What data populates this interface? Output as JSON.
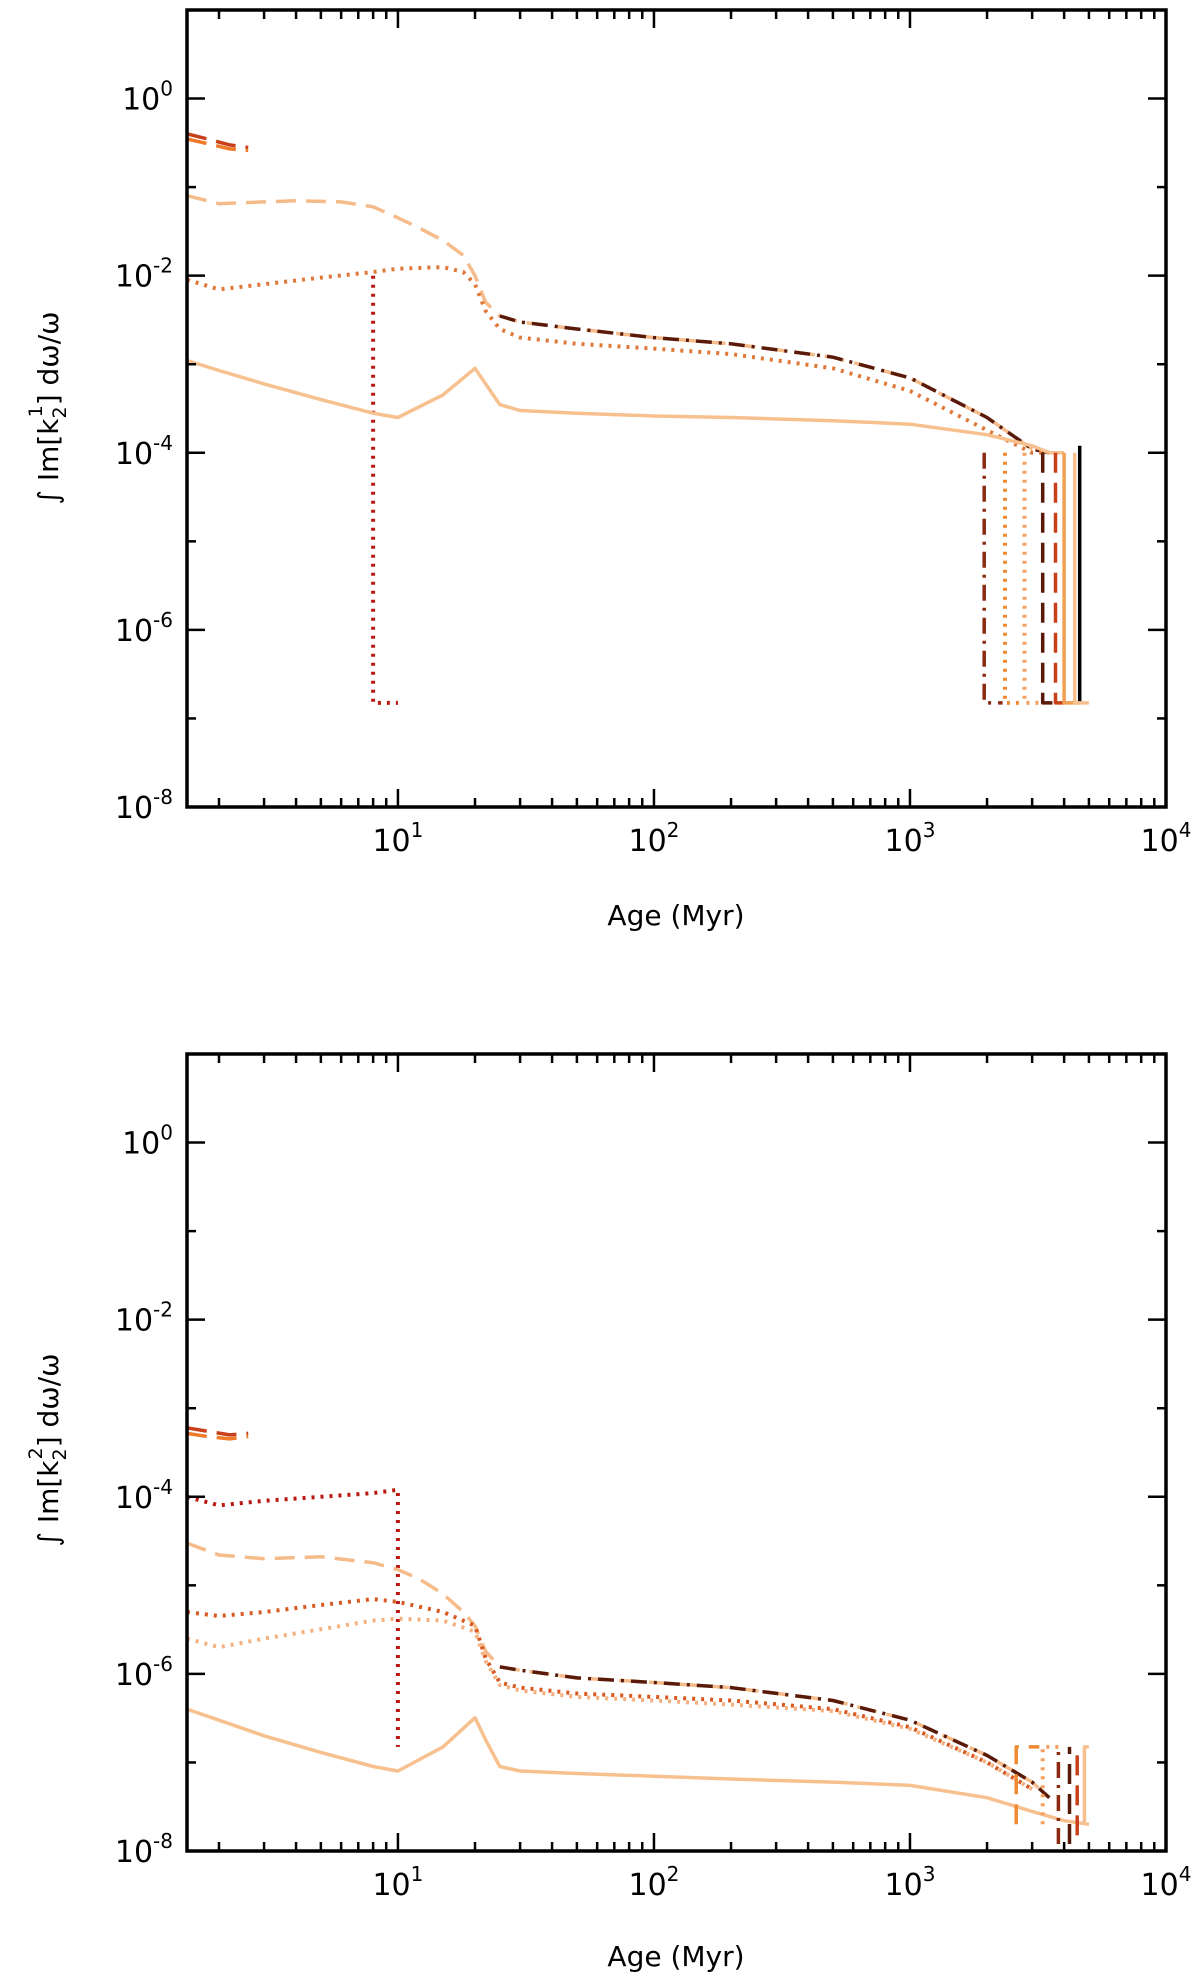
{
  "figure": {
    "panels": [
      {
        "id": "top",
        "xlabel": "Age (Myr)",
        "ylabel_prefix": "∫ Im[k",
        "ylabel_sub": "2",
        "ylabel_sup": "1",
        "ylabel_suffix": "] dω/ω"
      },
      {
        "id": "bottom",
        "xlabel": "Age (Myr)",
        "ylabel_prefix": "∫ Im[k",
        "ylabel_sub": "2",
        "ylabel_sup": "2",
        "ylabel_suffix": "] dω/ω"
      }
    ]
  },
  "chart_data": [
    {
      "type": "line",
      "title": "",
      "xlabel": "Age (Myr)",
      "ylabel": "∫ Im[k_2^1] dω/ω",
      "xscale": "log",
      "yscale": "log",
      "xlim": [
        1.5,
        10000
      ],
      "ylim": [
        1e-08,
        10
      ],
      "xticks": [
        {
          "base": "10",
          "exp": "1",
          "value": 10
        },
        {
          "base": "10",
          "exp": "2",
          "value": 100
        },
        {
          "base": "10",
          "exp": "3",
          "value": 1000
        },
        {
          "base": "10",
          "exp": "4",
          "value": 10000
        }
      ],
      "yticks": [
        {
          "base": "10",
          "exp": "-8",
          "value": 1e-08
        },
        {
          "base": "10",
          "exp": "-6",
          "value": 1e-06
        },
        {
          "base": "10",
          "exp": "-4",
          "value": 0.0001
        },
        {
          "base": "10",
          "exp": "-2",
          "value": 0.01
        },
        {
          "base": "10",
          "exp": "0",
          "value": 1
        }
      ],
      "series": [
        {
          "name": "pms-early-dashed-red",
          "color": "#c8401a",
          "style": "dashed",
          "x": [
            1.5,
            1.8,
            2.2,
            2.6
          ],
          "y": [
            0.4,
            0.35,
            0.3,
            0.28
          ]
        },
        {
          "name": "pms-early-dashed-orange",
          "color": "#f07a2a",
          "style": "dashed",
          "x": [
            1.5,
            1.8,
            2.2,
            2.6
          ],
          "y": [
            0.35,
            0.31,
            0.27,
            0.26
          ]
        },
        {
          "name": "dashed-upper",
          "color": "#f6bb8a",
          "style": "dashed",
          "x": [
            1.5,
            2,
            3,
            4,
            6,
            8,
            10,
            12,
            15,
            18,
            20,
            22,
            25,
            30,
            50,
            100,
            200,
            500,
            1000,
            2000,
            3000,
            3500
          ],
          "y": [
            0.08,
            0.065,
            0.068,
            0.07,
            0.068,
            0.06,
            0.045,
            0.035,
            0.025,
            0.017,
            0.01,
            0.005,
            0.0035,
            0.003,
            0.0025,
            0.002,
            0.0017,
            0.0012,
            0.0007,
            0.00025,
            0.00011,
            0.0001
          ]
        },
        {
          "name": "dashdot-dark",
          "color": "#5a1a0a",
          "style": "dashdot",
          "x": [
            25,
            30,
            50,
            100,
            200,
            500,
            1000,
            2000,
            3000,
            3500
          ],
          "y": [
            0.0035,
            0.003,
            0.0025,
            0.002,
            0.0017,
            0.0012,
            0.0007,
            0.00025,
            0.00011,
            0.0001
          ]
        },
        {
          "name": "dotted-upper",
          "color": "#e07838",
          "style": "dotted",
          "x": [
            1.5,
            2,
            3,
            5,
            8,
            10,
            15,
            18,
            20,
            22,
            25,
            30,
            50,
            100,
            200,
            500,
            1000,
            2000,
            3000,
            3500
          ],
          "y": [
            0.009,
            0.007,
            0.008,
            0.0095,
            0.011,
            0.012,
            0.0125,
            0.011,
            0.008,
            0.004,
            0.0025,
            0.002,
            0.0017,
            0.0015,
            0.0013,
            0.0009,
            0.0005,
            0.00018,
            0.0001,
            0.0001
          ]
        },
        {
          "name": "dotted-red-vertical",
          "color": "#b81810",
          "style": "dotted",
          "x": [
            8,
            8,
            8,
            10
          ],
          "y": [
            0.01,
            0.0003,
            1.5e-07,
            1.5e-07
          ]
        },
        {
          "name": "solid-lower",
          "color": "#f7c08f",
          "style": "solid",
          "x": [
            1.5,
            2,
            3,
            5,
            8,
            10,
            15,
            20,
            22,
            25,
            30,
            50,
            100,
            200,
            500,
            1000,
            2000,
            3000,
            3500,
            4000
          ],
          "y": [
            0.0011,
            0.00085,
            0.0006,
            0.0004,
            0.00028,
            0.00025,
            0.00045,
            0.0009,
            0.0006,
            0.00035,
            0.0003,
            0.00028,
            0.00026,
            0.00025,
            0.00023,
            0.00021,
            0.00016,
            0.00012,
            0.0001,
            0.0001
          ]
        },
        {
          "name": "dropoff-1",
          "color": "#8b2a10",
          "style": "dashdot",
          "x": [
            1950,
            1950,
            2300
          ],
          "y": [
            0.0001,
            1.5e-07,
            1.5e-07
          ]
        },
        {
          "name": "dropoff-2",
          "color": "#f08a30",
          "style": "dotted",
          "x": [
            2350,
            2350,
            2700
          ],
          "y": [
            0.0001,
            1.5e-07,
            1.5e-07
          ]
        },
        {
          "name": "dropoff-3",
          "color": "#f5a060",
          "style": "dotted",
          "x": [
            2800,
            2800,
            3200
          ],
          "y": [
            0.0001,
            1.5e-07,
            1.5e-07
          ]
        },
        {
          "name": "dropoff-4",
          "color": "#5a1a0a",
          "style": "dashed",
          "x": [
            3300,
            3300,
            3600
          ],
          "y": [
            0.0001,
            1.5e-07,
            1.5e-07
          ]
        },
        {
          "name": "dropoff-5",
          "color": "#c8401a",
          "style": "dashed",
          "x": [
            3700,
            3700,
            4200
          ],
          "y": [
            0.0001,
            1.5e-07,
            1.5e-07
          ]
        },
        {
          "name": "dropoff-6",
          "color": "#f0a050",
          "style": "solid",
          "x": [
            4000,
            4000,
            4700
          ],
          "y": [
            0.0001,
            1.5e-07,
            1.5e-07
          ]
        },
        {
          "name": "dropoff-7",
          "color": "#000000",
          "style": "solid",
          "x": [
            4600,
            4600
          ],
          "y": [
            0.00012,
            1.5e-07
          ]
        },
        {
          "name": "dropoff-8",
          "color": "#f7c08f",
          "style": "solid",
          "x": [
            4400,
            4400,
            5000
          ],
          "y": [
            0.0001,
            1.5e-07,
            1.5e-07
          ]
        }
      ]
    },
    {
      "type": "line",
      "title": "",
      "xlabel": "Age (Myr)",
      "ylabel": "∫ Im[k_2^2] dω/ω",
      "xscale": "log",
      "yscale": "log",
      "xlim": [
        1.5,
        10000
      ],
      "ylim": [
        1e-08,
        10
      ],
      "xticks": [
        {
          "base": "10",
          "exp": "1",
          "value": 10
        },
        {
          "base": "10",
          "exp": "2",
          "value": 100
        },
        {
          "base": "10",
          "exp": "3",
          "value": 1000
        },
        {
          "base": "10",
          "exp": "4",
          "value": 10000
        }
      ],
      "yticks": [
        {
          "base": "10",
          "exp": "-8",
          "value": 1e-08
        },
        {
          "base": "10",
          "exp": "-6",
          "value": 1e-06
        },
        {
          "base": "10",
          "exp": "-4",
          "value": 0.0001
        },
        {
          "base": "10",
          "exp": "-2",
          "value": 0.01
        },
        {
          "base": "10",
          "exp": "0",
          "value": 1
        }
      ],
      "series": [
        {
          "name": "pms-early-dashed-red",
          "color": "#c8401a",
          "style": "dashed",
          "x": [
            1.5,
            1.8,
            2.2,
            2.6
          ],
          "y": [
            0.0006,
            0.00055,
            0.0005,
            0.00052
          ]
        },
        {
          "name": "pms-early-dashed-orange",
          "color": "#f07a2a",
          "style": "dashed",
          "x": [
            1.5,
            1.8,
            2.2,
            2.6
          ],
          "y": [
            0.00052,
            0.00048,
            0.00045,
            0.00048
          ]
        },
        {
          "name": "dotted-red-upper",
          "color": "#b81810",
          "style": "dotted",
          "x": [
            1.5,
            2,
            3,
            5,
            8,
            10,
            10
          ],
          "y": [
            0.0001,
            8e-05,
            9e-05,
            0.0001,
            0.00011,
            0.00012,
            1.5e-07
          ]
        },
        {
          "name": "dashed-upper",
          "color": "#f6bb8a",
          "style": "dashed",
          "x": [
            1.5,
            2,
            3,
            5,
            8,
            10,
            12,
            15,
            18,
            20,
            22,
            25,
            30,
            50,
            100,
            200,
            500,
            1000,
            2000,
            3000,
            3500
          ],
          "y": [
            3e-05,
            2.2e-05,
            2e-05,
            2.1e-05,
            1.8e-05,
            1.5e-05,
            1.2e-05,
            8e-06,
            5e-06,
            3.5e-06,
            1.8e-06,
            1.2e-06,
            1.1e-06,
            9e-07,
            8e-07,
            7e-07,
            5e-07,
            3e-07,
            1.2e-07,
            6e-08,
            4e-08
          ]
        },
        {
          "name": "dashdot-dark",
          "color": "#5a1a0a",
          "style": "dashdot",
          "x": [
            25,
            30,
            50,
            100,
            200,
            500,
            1000,
            2000,
            3000,
            3500
          ],
          "y": [
            1.2e-06,
            1.1e-06,
            9e-07,
            8e-07,
            7e-07,
            5e-07,
            3e-07,
            1.2e-07,
            6e-08,
            4e-08
          ]
        },
        {
          "name": "dotted-orange-mid",
          "color": "#d85a20",
          "style": "dotted",
          "x": [
            1.5,
            2,
            3,
            5,
            8,
            10,
            15,
            20,
            22,
            25,
            30,
            50,
            100,
            200,
            500,
            1000,
            2000,
            3000
          ],
          "y": [
            5e-06,
            4.5e-06,
            5e-06,
            6e-06,
            7e-06,
            6.5e-06,
            5e-06,
            3.5e-06,
            1.5e-06,
            8e-07,
            7e-07,
            6e-07,
            5.5e-07,
            5e-07,
            4e-07,
            2.5e-07,
            1e-07,
            5e-08
          ]
        },
        {
          "name": "dotted-light-mid",
          "color": "#f5b080",
          "style": "dotted",
          "x": [
            1.5,
            2,
            3,
            5,
            8,
            10,
            15,
            20,
            22,
            25,
            30,
            50,
            100,
            200,
            500,
            1000,
            2000,
            3000
          ],
          "y": [
            2.5e-06,
            2e-06,
            2.5e-06,
            3.2e-06,
            4e-06,
            4.2e-06,
            4e-06,
            3e-06,
            1.4e-06,
            7.5e-07,
            6.5e-07,
            5.5e-07,
            5e-07,
            4.5e-07,
            3.8e-07,
            2.4e-07,
            1e-07,
            5e-08
          ]
        },
        {
          "name": "solid-lower",
          "color": "#f7c08f",
          "style": "solid",
          "x": [
            1.5,
            2,
            3,
            5,
            8,
            10,
            15,
            20,
            22,
            25,
            30,
            50,
            100,
            200,
            500,
            1000,
            2000,
            3000,
            4000,
            5000
          ],
          "y": [
            4e-07,
            3e-07,
            2e-07,
            1.3e-07,
            9e-08,
            8e-08,
            1.5e-07,
            3.2e-07,
            1.8e-07,
            9e-08,
            8e-08,
            7.5e-08,
            7e-08,
            6.5e-08,
            6e-08,
            5.5e-08,
            4e-08,
            2.8e-08,
            2.2e-08,
            2e-08
          ]
        },
        {
          "name": "dropoff-1",
          "color": "#f08a30",
          "style": "dashed",
          "x": [
            2600,
            2600,
            3200
          ],
          "y": [
            2e-08,
            1.5e-07,
            1.5e-07
          ]
        },
        {
          "name": "dropoff-2",
          "color": "#f5a060",
          "style": "dotted",
          "x": [
            3300,
            3300,
            3800
          ],
          "y": [
            2e-08,
            1.5e-07,
            1.5e-07
          ]
        },
        {
          "name": "dropoff-3",
          "color": "#8b2a10",
          "style": "dashdot",
          "x": [
            3800,
            3800
          ],
          "y": [
            1.2e-08,
            1.5e-07
          ]
        },
        {
          "name": "dropoff-4",
          "color": "#5a1a0a",
          "style": "dashed",
          "x": [
            4200,
            4200
          ],
          "y": [
            1.2e-08,
            1.5e-07
          ]
        },
        {
          "name": "dropoff-5",
          "color": "#c8401a",
          "style": "dashed",
          "x": [
            4500,
            4500
          ],
          "y": [
            1.5e-08,
            1.5e-07
          ]
        },
        {
          "name": "dropoff-6",
          "color": "#f7c08f",
          "style": "solid",
          "x": [
            4800,
            4800,
            5000
          ],
          "y": [
            2e-08,
            1.5e-07,
            1.5e-07
          ]
        }
      ]
    }
  ]
}
